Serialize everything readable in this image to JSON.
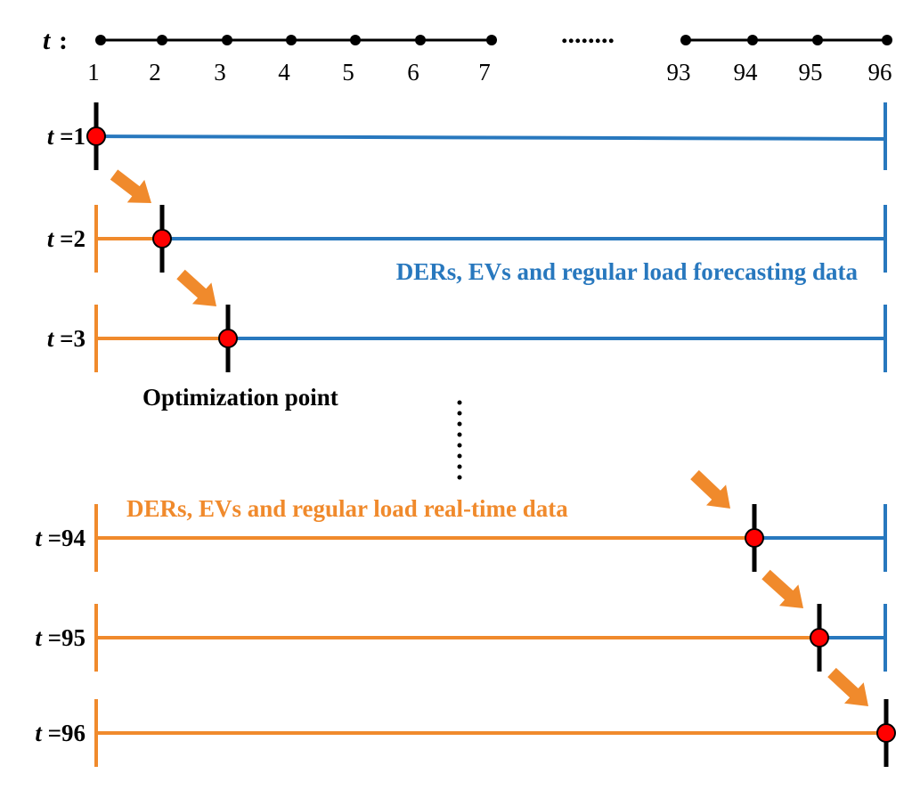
{
  "timeline": {
    "variable": "t",
    "colon": ":",
    "ellipsis": "........",
    "ticks_left": [
      "1",
      "2",
      "3",
      "4",
      "5",
      "6",
      "7"
    ],
    "ticks_right": [
      "93",
      "94",
      "95",
      "96"
    ]
  },
  "rows": [
    {
      "t": "t",
      "eq": "=1",
      "step": 1
    },
    {
      "t": "t",
      "eq": "=2",
      "step": 2
    },
    {
      "t": "t",
      "eq": "=3",
      "step": 3
    },
    {
      "t": "t",
      "eq": "=94",
      "step": 94
    },
    {
      "t": "t",
      "eq": "=95",
      "step": 95
    },
    {
      "t": "t",
      "eq": "=96",
      "step": 96
    }
  ],
  "labels": {
    "forecast": "DERs, EVs and regular load forecasting data",
    "realtime": "DERs, EVs and regular load real-time data",
    "optimization_point": "Optimization point"
  },
  "colors": {
    "forecast": "#2878be",
    "realtime": "#f08a2c",
    "point": "#ff0000",
    "marker": "#000000"
  }
}
